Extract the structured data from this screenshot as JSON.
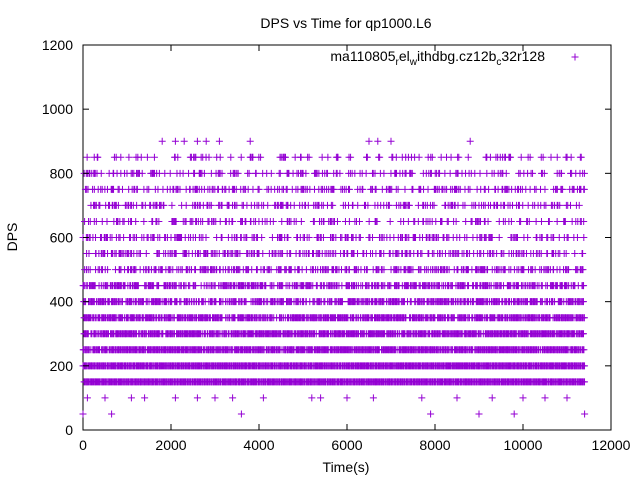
{
  "chart_data": {
    "type": "scatter",
    "title": "DPS vs Time for qp1000.L6",
    "xlabel": "Time(s)",
    "ylabel": "DPS",
    "xlim": [
      0,
      12000
    ],
    "ylim": [
      0,
      1200
    ],
    "xticks": [
      0,
      2000,
      4000,
      6000,
      8000,
      10000,
      12000
    ],
    "yticks": [
      0,
      200,
      400,
      600,
      800,
      1000,
      1200
    ],
    "xtick_labels": [
      "0",
      "2000",
      "4000",
      "6000",
      "8000",
      "10000",
      "12000"
    ],
    "ytick_labels": [
      "0",
      "200",
      "400",
      "600",
      "800",
      "1000",
      "1200"
    ],
    "grid": false,
    "legend_position": "top-right",
    "marker": "+",
    "x_max": 11400,
    "series": [
      {
        "legend": {
          "base": "ma110805",
          "sub1": "r",
          "mid1": "el",
          "sub2": "w",
          "mid2": "ithdbg.cz12b",
          "sub3": "c",
          "tail": "32r128"
        },
        "color": "#9400d3",
        "levels": [
          {
            "y": 50,
            "x": [
              0,
              650,
              3600,
              7900,
              9000,
              9800,
              11400
            ]
          },
          {
            "y": 100,
            "x": [
              100,
              500,
              1100,
              1400,
              2100,
              2600,
              3000,
              3400,
              4100,
              5200,
              5400,
              6000,
              6600,
              7700,
              8500,
              9300,
              10000,
              10500,
              11000
            ]
          },
          {
            "y": 150,
            "density": 1.0
          },
          {
            "y": 200,
            "density": 1.0
          },
          {
            "y": 250,
            "density": 0.95
          },
          {
            "y": 300,
            "density": 0.9
          },
          {
            "y": 350,
            "density": 0.85
          },
          {
            "y": 400,
            "density": 0.7
          },
          {
            "y": 450,
            "density": 0.6
          },
          {
            "y": 500,
            "density": 0.5
          },
          {
            "y": 550,
            "density": 0.4
          },
          {
            "y": 600,
            "density": 0.35
          },
          {
            "y": 650,
            "density": 0.25
          },
          {
            "y": 700,
            "density": 0.3
          },
          {
            "y": 750,
            "density": 0.35
          },
          {
            "y": 800,
            "density": 0.3
          },
          {
            "y": 850,
            "density": 0.15
          },
          {
            "y": 900,
            "x": [
              1800,
              2100,
              2300,
              2600,
              2800,
              3100,
              3800,
              6500,
              6700,
              7000,
              8800
            ]
          }
        ]
      }
    ]
  }
}
